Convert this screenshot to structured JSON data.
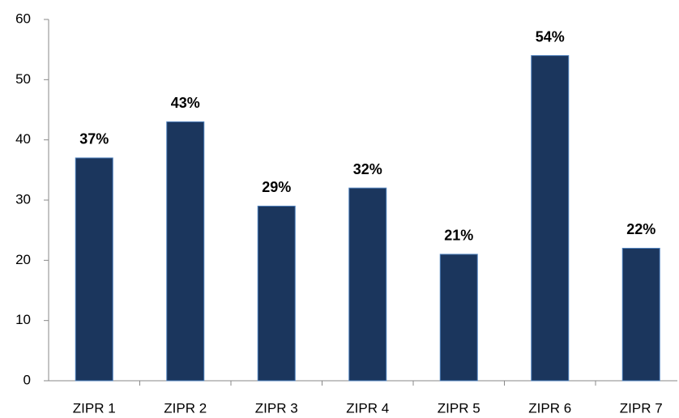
{
  "chart_data": {
    "type": "bar",
    "categories": [
      "ZIPR 1",
      "ZIPR 2",
      "ZIPR 3",
      "ZIPR 4",
      "ZIPR 5",
      "ZIPR 6",
      "ZIPR 7"
    ],
    "values": [
      37,
      43,
      29,
      32,
      21,
      54,
      22
    ],
    "value_labels": [
      "37%",
      "43%",
      "29%",
      "32%",
      "21%",
      "54%",
      "22%"
    ],
    "color": "#1b365d",
    "ylim": [
      0,
      60
    ],
    "yticks": [
      0,
      10,
      20,
      30,
      40,
      50,
      60
    ],
    "grid": false
  }
}
